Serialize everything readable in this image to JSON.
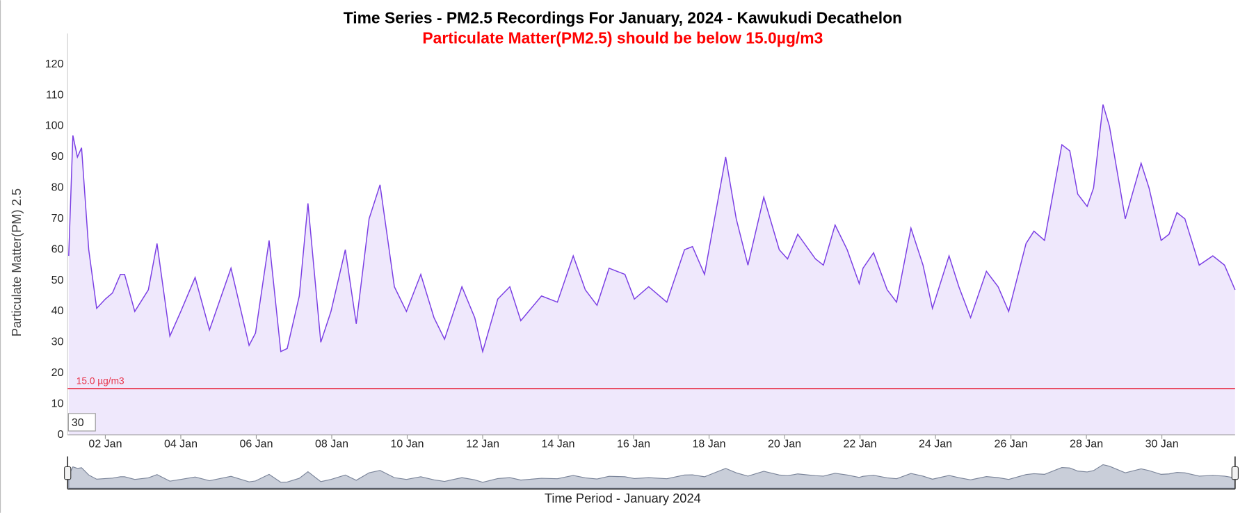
{
  "chart_data": {
    "type": "line",
    "title": "Time Series - PM2.5 Recordings For January, 2024 - Kawukudi Decathelon",
    "subtitle": "Particulate Matter(PM2.5) should be below 15.0µg/m3",
    "subtitle_color": "#ff0000",
    "xlabel": "Time Period - January 2024",
    "ylabel": "Particulate Matter(PM) 2.5",
    "zoom_label": "30",
    "threshold": {
      "value": 15,
      "label": "15.0 µg/m3",
      "color": "#e8334a"
    },
    "x": [
      1.03,
      1.14,
      1.26,
      1.37,
      1.56,
      1.77,
      2.0,
      2.19,
      2.4,
      2.51,
      2.78,
      3.14,
      3.37,
      3.71,
      4.0,
      4.38,
      4.76,
      5.33,
      5.81,
      5.98,
      6.34,
      6.65,
      6.82,
      7.14,
      7.37,
      7.71,
      7.98,
      8.36,
      8.65,
      8.99,
      9.28,
      9.66,
      9.98,
      10.36,
      10.71,
      10.99,
      11.45,
      11.79,
      12.0,
      12.4,
      12.72,
      13.01,
      13.56,
      13.98,
      14.4,
      14.72,
      15.03,
      15.35,
      15.77,
      16.02,
      16.4,
      16.88,
      17.35,
      17.56,
      17.88,
      18.44,
      18.72,
      19.03,
      19.45,
      19.86,
      20.08,
      20.35,
      20.82,
      21.03,
      21.34,
      21.66,
      21.98,
      22.08,
      22.36,
      22.72,
      22.97,
      23.35,
      23.67,
      23.92,
      24.36,
      24.62,
      24.93,
      25.35,
      25.66,
      25.94,
      26.4,
      26.61,
      26.89,
      27.35,
      27.56,
      27.77,
      28.02,
      28.19,
      28.44,
      28.61,
      29.03,
      29.45,
      29.66,
      29.98,
      30.19,
      30.4,
      30.61,
      30.99,
      31.35,
      31.66,
      31.94
    ],
    "series": [
      {
        "name": "PM2.5",
        "color": "#7b3fe4",
        "fill": "#efe8fc",
        "values": [
          58,
          97,
          90,
          93,
          60,
          41,
          44,
          46,
          52,
          52,
          40,
          47,
          62,
          32,
          40,
          51,
          34,
          54,
          29,
          33,
          63,
          27,
          28,
          45,
          75,
          30,
          40,
          60,
          36,
          70,
          81,
          48,
          40,
          52,
          38,
          31,
          48,
          38,
          27,
          44,
          48,
          37,
          45,
          43,
          58,
          47,
          42,
          54,
          52,
          44,
          48,
          43,
          60,
          61,
          52,
          90,
          70,
          55,
          77,
          60,
          57,
          65,
          57,
          55,
          68,
          60,
          49,
          54,
          59,
          47,
          43,
          67,
          55,
          41,
          58,
          48,
          38,
          53,
          48,
          40,
          62,
          66,
          63,
          94,
          92,
          78,
          74,
          80,
          107,
          100,
          70,
          88,
          80,
          63,
          65,
          72,
          70,
          55,
          58,
          55,
          47
        ]
      }
    ],
    "xlim": [
      1,
      31.94
    ],
    "ylim": [
      0,
      130
    ],
    "xticks": [
      {
        "value": 2,
        "label": "02 Jan"
      },
      {
        "value": 4,
        "label": "04 Jan"
      },
      {
        "value": 6,
        "label": "06 Jan"
      },
      {
        "value": 8,
        "label": "08 Jan"
      },
      {
        "value": 10,
        "label": "10 Jan"
      },
      {
        "value": 12,
        "label": "12 Jan"
      },
      {
        "value": 14,
        "label": "14 Jan"
      },
      {
        "value": 16,
        "label": "16 Jan"
      },
      {
        "value": 18,
        "label": "18 Jan"
      },
      {
        "value": 20,
        "label": "20 Jan"
      },
      {
        "value": 22,
        "label": "22 Jan"
      },
      {
        "value": 24,
        "label": "24 Jan"
      },
      {
        "value": 26,
        "label": "26 Jan"
      },
      {
        "value": 28,
        "label": "28 Jan"
      },
      {
        "value": 30,
        "label": "30 Jan"
      }
    ],
    "yticks": [
      0,
      10,
      20,
      30,
      40,
      50,
      60,
      70,
      80,
      90,
      100,
      110,
      120
    ],
    "grid": false
  }
}
